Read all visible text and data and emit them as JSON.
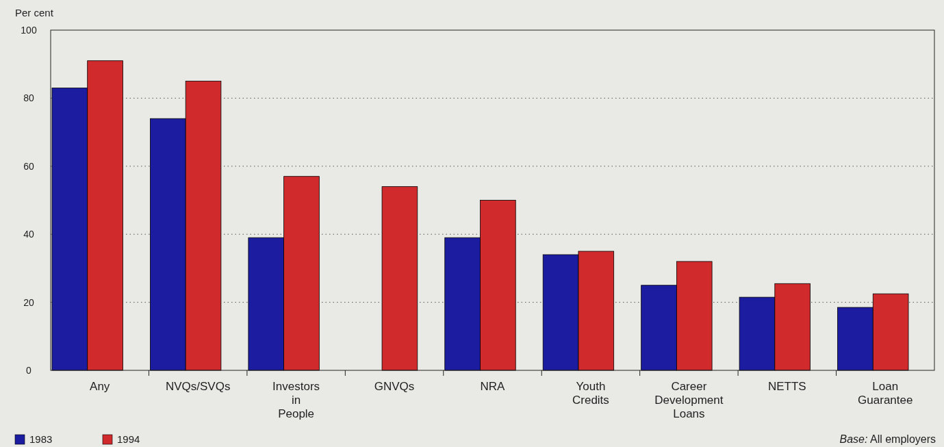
{
  "chart_data": {
    "type": "bar",
    "ylabel": "Per cent",
    "categories": [
      "Any",
      "NVQs/SVQs",
      "Investors in People",
      "GNVQs",
      "NRA",
      "Youth Credits",
      "Career Development Loans",
      "NETTS",
      "Loan Guarantee"
    ],
    "series": [
      {
        "name": "1983",
        "color": "#1c1ca0",
        "values": [
          83,
          74,
          39,
          null,
          39,
          34,
          25,
          21.5,
          18.5
        ]
      },
      {
        "name": "1994",
        "color": "#d02a2c",
        "values": [
          91,
          85,
          57,
          54,
          50,
          35,
          32,
          25.5,
          22.5
        ]
      }
    ],
    "ylim": [
      0,
      100
    ],
    "yticks": [
      0,
      20,
      40,
      60,
      80,
      100
    ],
    "grid": "y",
    "legend": "bottom left",
    "annotations": [
      "Base: All employers"
    ]
  }
}
